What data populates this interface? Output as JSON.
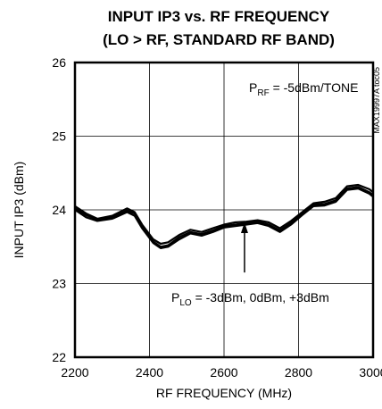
{
  "chart_data": {
    "type": "line",
    "title_line1": "INPUT IP3 vs. RF FREQUENCY",
    "title_line2": "(LO > RF, STANDARD RF BAND)",
    "xlabel": "RF FREQUENCY (MHz)",
    "ylabel": "INPUT IP3 (dBm)",
    "xlim": [
      2200,
      3000
    ],
    "ylim": [
      22,
      26
    ],
    "xticks": [
      "2200",
      "2400",
      "2600",
      "2800",
      "3000"
    ],
    "yticks": [
      "22",
      "23",
      "24",
      "25",
      "26"
    ],
    "grid": true,
    "annotation_top": {
      "main": "P",
      "sub": "RF",
      "rest": " = -5dBm/TONE"
    },
    "annotation_bottom": {
      "main": "P",
      "sub": "LO",
      "rest": " = -3dBm, 0dBm, +3dBm"
    },
    "side_label": "MAX19997A toc05",
    "series": [
      {
        "x": [
          2200,
          2230,
          2260,
          2300,
          2340,
          2360,
          2380,
          2410,
          2430,
          2450,
          2480,
          2510,
          2540,
          2570,
          2600,
          2630,
          2660,
          2690,
          2720,
          2750,
          2780,
          2810,
          2840,
          2870,
          2900,
          2930,
          2960,
          2990,
          3000
        ],
        "values": [
          24.02,
          23.93,
          23.87,
          23.9,
          23.99,
          23.95,
          23.78,
          23.57,
          23.5,
          23.52,
          23.63,
          23.7,
          23.67,
          23.72,
          23.78,
          23.8,
          23.82,
          23.84,
          23.8,
          23.72,
          23.82,
          23.95,
          24.07,
          24.08,
          24.13,
          24.29,
          24.31,
          24.24,
          24.2
        ]
      },
      {
        "x": [
          2200,
          2230,
          2260,
          2300,
          2340,
          2360,
          2380,
          2410,
          2430,
          2450,
          2480,
          2510,
          2540,
          2570,
          2600,
          2630,
          2660,
          2690,
          2720,
          2750,
          2780,
          2810,
          2840,
          2870,
          2900,
          2930,
          2960,
          2990,
          3000
        ],
        "values": [
          24.05,
          23.95,
          23.88,
          23.92,
          24.02,
          23.97,
          23.8,
          23.6,
          23.54,
          23.56,
          23.66,
          23.73,
          23.7,
          23.75,
          23.8,
          23.83,
          23.84,
          23.86,
          23.83,
          23.75,
          23.85,
          23.97,
          24.09,
          24.11,
          24.16,
          24.32,
          24.34,
          24.28,
          24.24
        ]
      },
      {
        "x": [
          2200,
          2230,
          2260,
          2300,
          2340,
          2360,
          2380,
          2410,
          2430,
          2450,
          2480,
          2510,
          2540,
          2570,
          2600,
          2630,
          2660,
          2690,
          2720,
          2750,
          2780,
          2810,
          2840,
          2870,
          2900,
          2930,
          2960,
          2990,
          3000
        ],
        "values": [
          24.0,
          23.9,
          23.85,
          23.88,
          23.97,
          23.92,
          23.75,
          23.55,
          23.48,
          23.5,
          23.6,
          23.68,
          23.65,
          23.7,
          23.76,
          23.78,
          23.8,
          23.82,
          23.78,
          23.7,
          23.8,
          23.93,
          24.05,
          24.06,
          24.11,
          24.27,
          24.29,
          24.22,
          24.18
        ]
      }
    ],
    "arrow_at": {
      "x": 2655,
      "y_from": 23.15,
      "y_to": 23.83
    }
  }
}
